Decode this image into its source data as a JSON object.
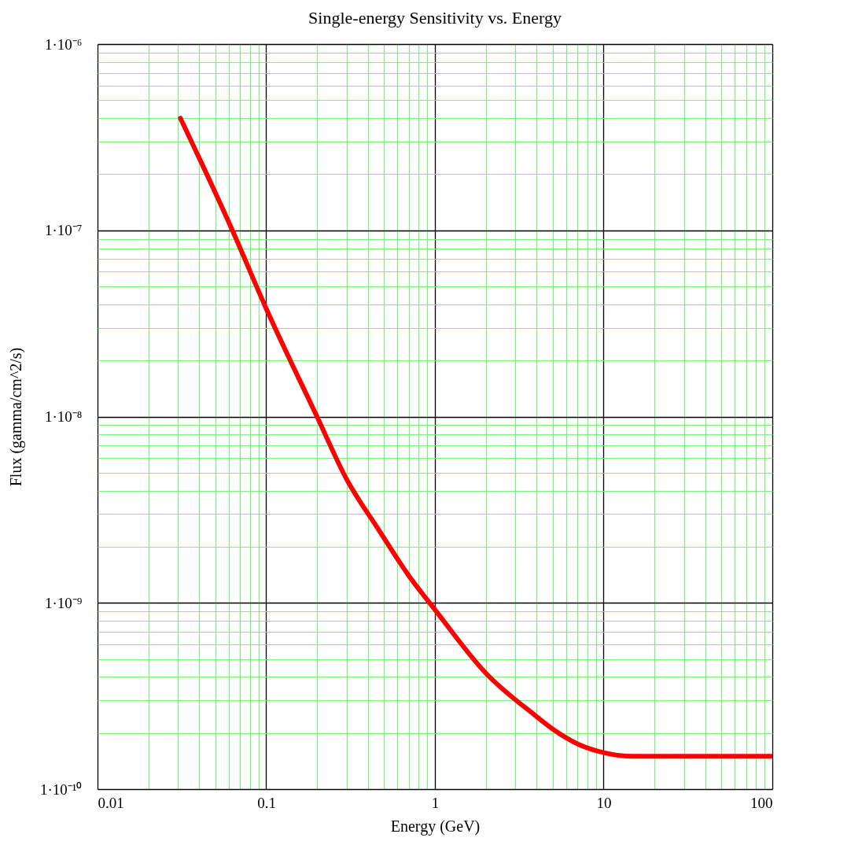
{
  "chart_data": {
    "type": "line",
    "title": "Single-energy Sensitivity vs. Energy",
    "xlabel": "Energy (GeV)",
    "ylabel": "Flux (gamma/cm^2/s)",
    "x": [
      0.031,
      0.063,
      0.1,
      0.2,
      0.3,
      0.46,
      0.7,
      1,
      2,
      3.9,
      5,
      7,
      10,
      15,
      18,
      100
    ],
    "series": [
      {
        "color": "#ff0000",
        "values": [
          4e-07,
          1e-07,
          3.8e-08,
          1e-08,
          4.6e-09,
          2.5e-09,
          1.4e-09,
          9.2e-10,
          4.2e-10,
          2.5e-10,
          2.1e-10,
          1.75e-10,
          1.57e-10,
          1.5e-10,
          1.5e-10,
          1.5e-10
        ]
      }
    ],
    "log": "xy",
    "xlim": [
      0.01,
      100
    ],
    "ylim": [
      1e-10,
      1e-06
    ],
    "xticks": [
      0.01,
      {
        "value": 0.02,
        "label": null
      },
      {
        "value": 0.03,
        "label": null
      },
      {
        "value": 0.04,
        "label": null
      },
      {
        "value": 0.05,
        "label": null
      },
      {
        "value": 0.06,
        "label": null
      },
      {
        "value": 0.07,
        "label": null
      },
      {
        "value": 0.08,
        "label": null
      },
      {
        "value": 0.09,
        "label": null
      },
      0.1,
      {
        "value": 0.2,
        "label": null
      },
      {
        "value": 0.3,
        "label": null
      },
      {
        "value": 0.4,
        "label": null
      },
      {
        "value": 0.5,
        "label": null
      },
      {
        "value": 0.6,
        "label": null
      },
      {
        "value": 0.7,
        "label": null
      },
      {
        "value": 0.8,
        "label": null
      },
      {
        "value": 0.9,
        "label": null
      },
      1,
      {
        "value": 2,
        "label": null
      },
      {
        "value": 3,
        "label": null
      },
      {
        "value": 4,
        "label": null
      },
      {
        "value": 5,
        "label": null
      },
      {
        "value": 6,
        "label": null
      },
      {
        "value": 7,
        "label": null
      },
      {
        "value": 8,
        "label": null
      },
      {
        "value": 9,
        "label": null
      },
      10,
      {
        "value": 20,
        "label": null
      },
      {
        "value": 30,
        "label": null
      },
      {
        "value": 40,
        "label": null
      },
      {
        "value": 50,
        "label": null
      },
      {
        "value": 60,
        "label": null
      },
      {
        "value": 70,
        "label": null
      },
      {
        "value": 80,
        "label": null
      },
      {
        "value": 90,
        "label": null
      },
      100
    ],
    "yticks": [
      {
        "value": 1e-10,
        "label": "1·10⁻¹⁰"
      },
      {
        "value": 2e-10,
        "label": null
      },
      {
        "value": 3e-10,
        "label": null
      },
      {
        "value": 4e-10,
        "label": null
      },
      {
        "value": 5e-10,
        "label": null
      },
      {
        "value": 6e-10,
        "label": null
      },
      {
        "value": 7e-10,
        "label": null
      },
      {
        "value": 8e-10,
        "label": null
      },
      {
        "value": 9e-10,
        "label": null
      },
      {
        "value": 1e-09,
        "label": "1·10⁻⁹"
      },
      {
        "value": 2e-09,
        "label": null
      },
      {
        "value": 3e-09,
        "label": null
      },
      {
        "value": 4e-09,
        "label": null
      },
      {
        "value": 5e-09,
        "label": null
      },
      {
        "value": 6e-09,
        "label": null
      },
      {
        "value": 7e-09,
        "label": null
      },
      {
        "value": 8e-09,
        "label": null
      },
      {
        "value": 9e-09,
        "label": null
      },
      {
        "value": 1e-08,
        "label": "1·10⁻⁸"
      },
      {
        "value": 2e-08,
        "label": null
      },
      {
        "value": 3e-08,
        "label": null
      },
      {
        "value": 4e-08,
        "label": null
      },
      {
        "value": 5e-08,
        "label": null
      },
      {
        "value": 6e-08,
        "label": null
      },
      {
        "value": 7e-08,
        "label": null
      },
      {
        "value": 8e-08,
        "label": null
      },
      {
        "value": 9e-08,
        "label": null
      },
      {
        "value": 1e-07,
        "label": "1·10⁻⁷"
      },
      {
        "value": 2e-07,
        "label": null
      },
      {
        "value": 3e-07,
        "label": null
      },
      {
        "value": 4e-07,
        "label": null
      },
      {
        "value": 5e-07,
        "label": null
      },
      {
        "value": 6e-07,
        "label": null
      },
      {
        "value": 7e-07,
        "label": null
      },
      {
        "value": 8e-07,
        "label": null
      },
      {
        "value": 9e-07,
        "label": null
      },
      {
        "value": 1e-06,
        "label": "1·10⁻⁶"
      }
    ],
    "grid": true,
    "line_style": "solid",
    "marker": "none"
  }
}
